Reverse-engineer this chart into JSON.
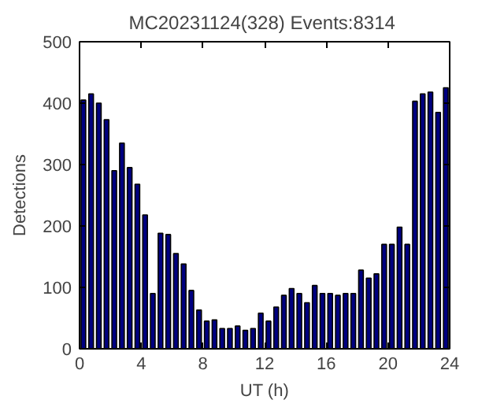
{
  "chart_data": {
    "type": "bar",
    "title": "MC20231124(328)  Events:8314",
    "xlabel": "UT (h)",
    "ylabel": "Detections",
    "x": [
      0.25,
      0.75,
      1.25,
      1.75,
      2.25,
      2.75,
      3.25,
      3.75,
      4.25,
      4.75,
      5.25,
      5.75,
      6.25,
      6.75,
      7.25,
      7.75,
      8.25,
      8.75,
      9.25,
      9.75,
      10.25,
      10.75,
      11.25,
      11.75,
      12.25,
      12.75,
      13.25,
      13.75,
      14.25,
      14.75,
      15.25,
      15.75,
      16.25,
      16.75,
      17.25,
      17.75,
      18.25,
      18.75,
      19.25,
      19.75,
      20.25,
      20.75,
      21.25,
      21.75,
      22.25,
      22.75,
      23.25,
      23.75
    ],
    "values": [
      405,
      415,
      400,
      373,
      290,
      335,
      295,
      268,
      218,
      90,
      188,
      186,
      155,
      138,
      95,
      63,
      45,
      47,
      33,
      33,
      37,
      30,
      33,
      58,
      45,
      68,
      87,
      98,
      90,
      75,
      103,
      90,
      90,
      87,
      90,
      90,
      128,
      115,
      122,
      170,
      170,
      198,
      170,
      403,
      415,
      418,
      385,
      425
    ],
    "color": "#000080",
    "xlim": [
      0,
      24
    ],
    "xticks": [
      0,
      4,
      8,
      12,
      16,
      20,
      24
    ],
    "ylim": [
      0,
      500
    ],
    "yticks": [
      0,
      100,
      200,
      300,
      400,
      500
    ],
    "grid": false
  }
}
